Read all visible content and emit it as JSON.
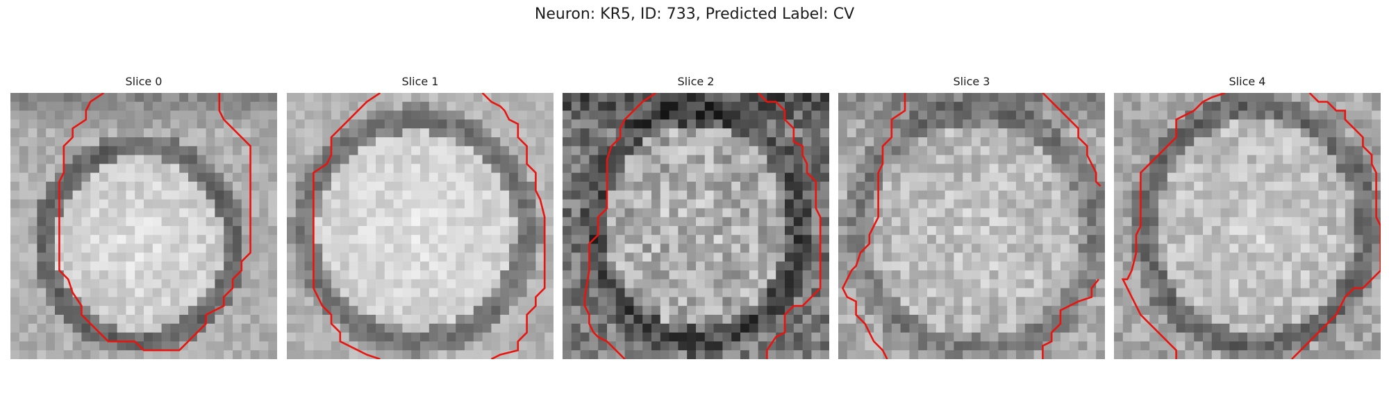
{
  "figure": {
    "title": "Neuron: KR5, ID: 733, Predicted Label: CV"
  },
  "slices": [
    {
      "title": "Slice 0"
    },
    {
      "title": "Slice 1"
    },
    {
      "title": "Slice 2"
    },
    {
      "title": "Slice 3"
    },
    {
      "title": "Slice 4"
    }
  ],
  "colors": {
    "contour": "#e8140f",
    "background": "#ffffff"
  }
}
